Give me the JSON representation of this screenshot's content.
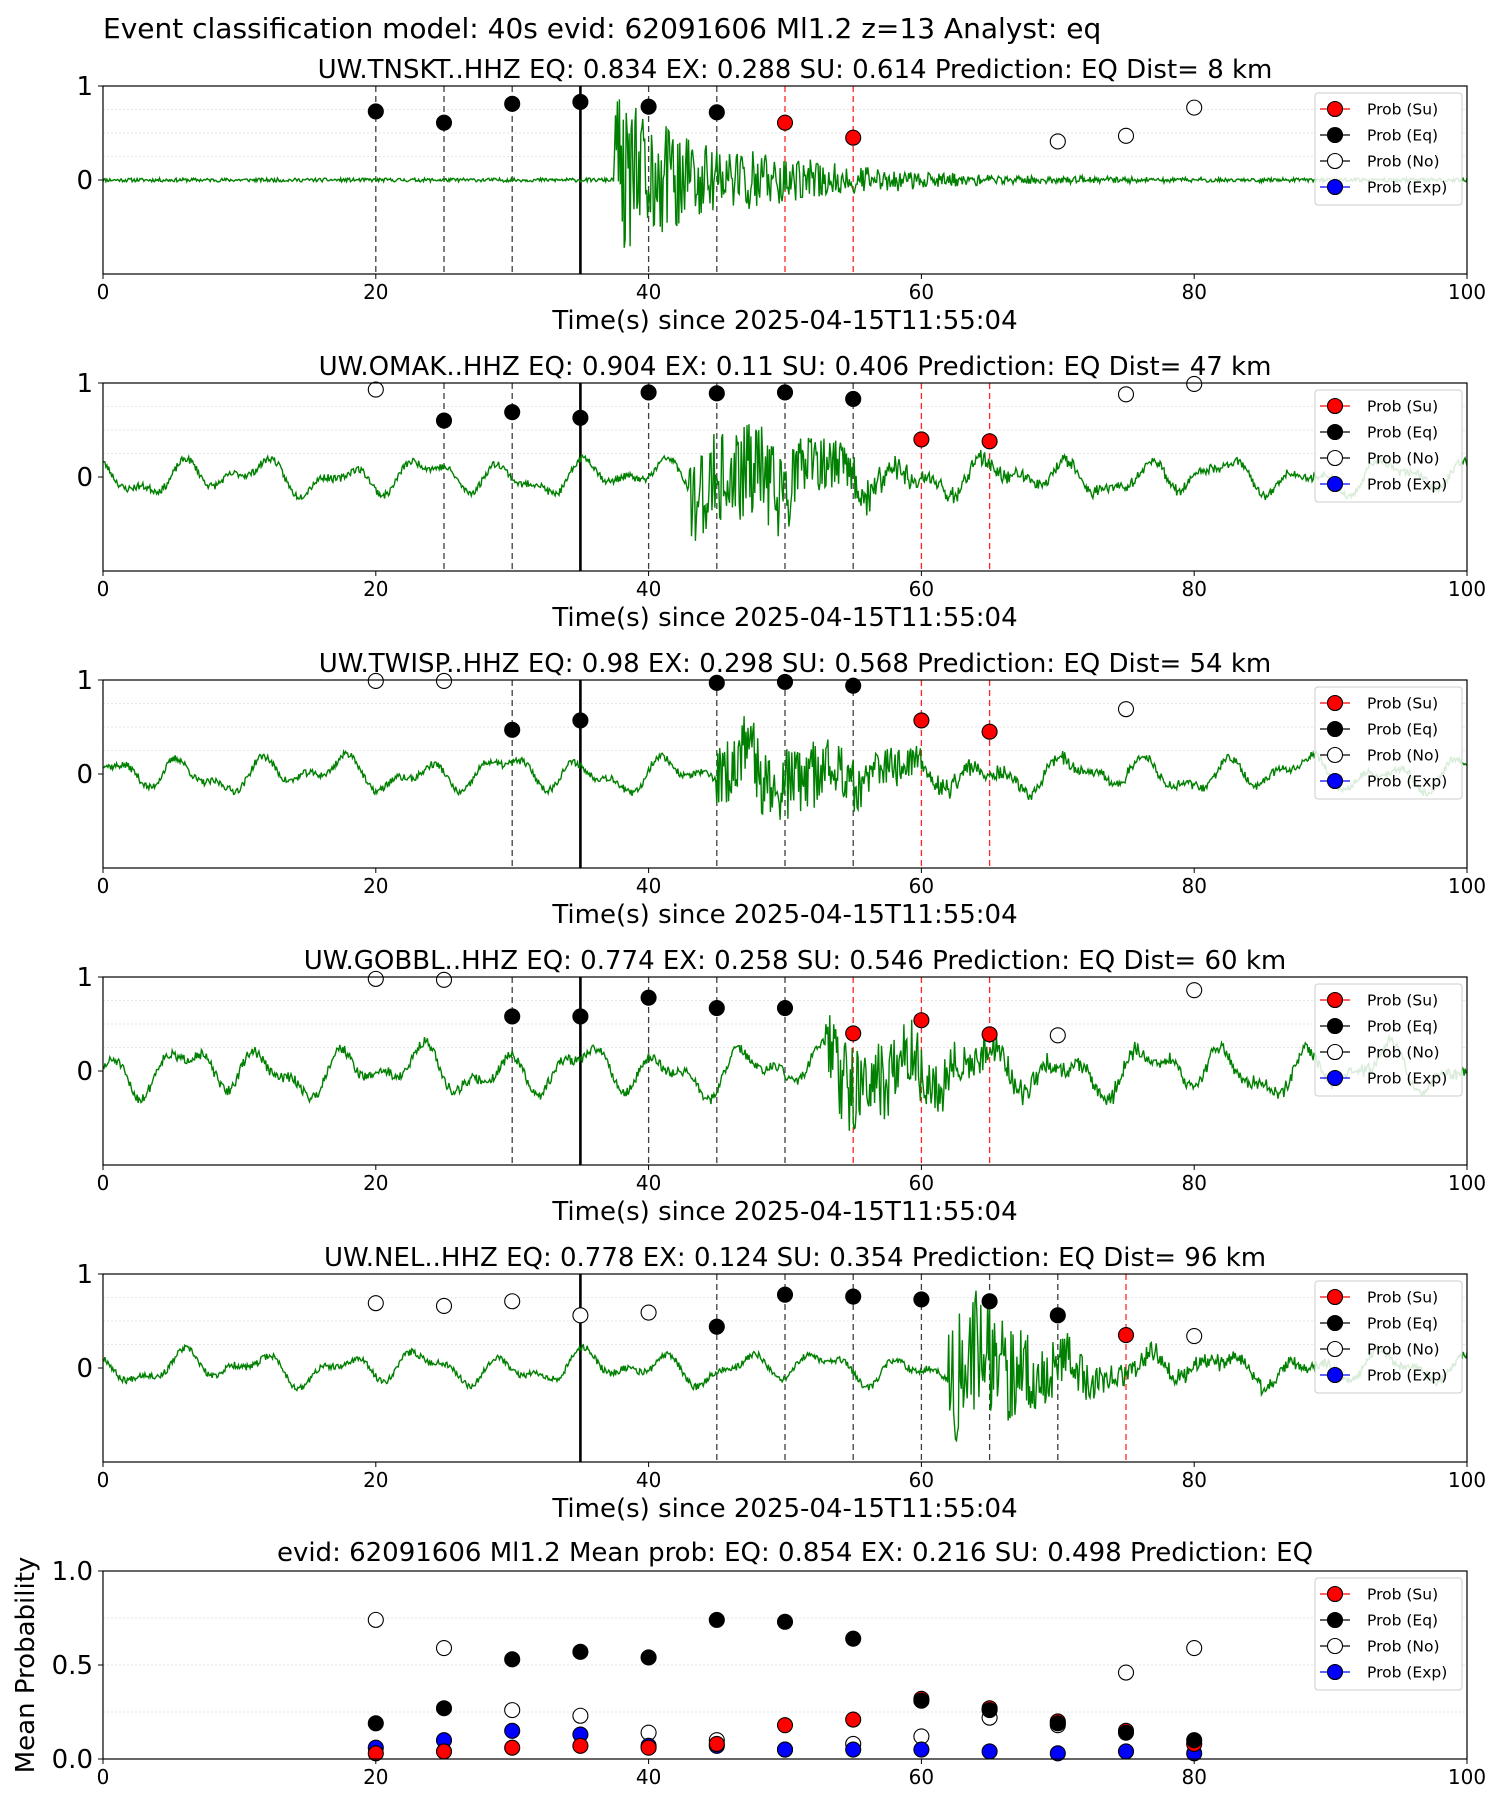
{
  "figure": {
    "suptitle": "Event classification model: 40s evid: 62091606 Ml1.2 z=13 Analyst: eq"
  },
  "legend": [
    "Prob (Su)",
    "Prob (Eq)",
    "Prob (No)",
    "Prob (Exp)"
  ],
  "colors": {
    "trace": "#008000",
    "su": "#ff0000",
    "eq": "#000000",
    "no": "#ffffff",
    "exp": "#0000ff",
    "grid": "#e6e6e6",
    "dashed_black": "#000000",
    "dashed_red": "#ff0000"
  },
  "chart_data": [
    {
      "type": "line",
      "title": "UW.TNSKT..HHZ   EQ: 0.834  EX: 0.288  SU: 0.614   Prediction: EQ    Dist= 8 km",
      "xlabel": "Time(s) since 2025-04-15T11:55:04",
      "ylabel": "",
      "xlim": [
        0,
        100
      ],
      "ylim": [
        -1,
        1
      ],
      "xticks": [
        "0",
        "20",
        "40",
        "60",
        "80",
        "100"
      ],
      "yticks": [
        "0",
        "1"
      ],
      "legend_position": "upper right",
      "waveform": {
        "onset": 37.5,
        "duration": 12,
        "amp": 0.9,
        "noise": 0.02,
        "peak": 0.55,
        "style": "local",
        "seed": 11
      },
      "solid_line": 35,
      "black_dashed": [
        20,
        25,
        30,
        40,
        45
      ],
      "red_dashed": [
        50,
        55
      ],
      "points": [
        {
          "x": 20,
          "y": 0.73,
          "cls": "eq"
        },
        {
          "x": 25,
          "y": 0.61,
          "cls": "eq"
        },
        {
          "x": 30,
          "y": 0.81,
          "cls": "eq"
        },
        {
          "x": 35,
          "y": 0.83,
          "cls": "eq"
        },
        {
          "x": 40,
          "y": 0.78,
          "cls": "eq"
        },
        {
          "x": 45,
          "y": 0.72,
          "cls": "eq"
        },
        {
          "x": 50,
          "y": 0.61,
          "cls": "su"
        },
        {
          "x": 55,
          "y": 0.45,
          "cls": "su"
        },
        {
          "x": 70,
          "y": 0.41,
          "cls": "no"
        },
        {
          "x": 75,
          "y": 0.47,
          "cls": "no"
        },
        {
          "x": 80,
          "y": 0.77,
          "cls": "no"
        }
      ]
    },
    {
      "type": "line",
      "title": "UW.OMAK..HHZ   EQ: 0.904  EX: 0.11  SU: 0.406   Prediction: EQ    Dist= 47 km",
      "xlabel": "Time(s) since 2025-04-15T11:55:04",
      "ylabel": "",
      "xlim": [
        0,
        100
      ],
      "ylim": [
        -1,
        1
      ],
      "xticks": [
        "0",
        "20",
        "40",
        "60",
        "80",
        "100"
      ],
      "yticks": [
        "0",
        "1"
      ],
      "legend_position": "upper right",
      "waveform": {
        "onset": 43,
        "duration": 12,
        "amp": 0.7,
        "noise": 0.22,
        "peak": 48.5,
        "style": "regional",
        "seed": 23
      },
      "solid_line": 35,
      "black_dashed": [
        25,
        30,
        40,
        45,
        50,
        55
      ],
      "red_dashed": [
        60,
        65
      ],
      "points": [
        {
          "x": 20,
          "y": 0.93,
          "cls": "no"
        },
        {
          "x": 25,
          "y": 0.6,
          "cls": "eq"
        },
        {
          "x": 30,
          "y": 0.69,
          "cls": "eq"
        },
        {
          "x": 35,
          "y": 0.63,
          "cls": "eq"
        },
        {
          "x": 40,
          "y": 0.9,
          "cls": "eq"
        },
        {
          "x": 45,
          "y": 0.89,
          "cls": "eq"
        },
        {
          "x": 50,
          "y": 0.9,
          "cls": "eq"
        },
        {
          "x": 55,
          "y": 0.83,
          "cls": "eq"
        },
        {
          "x": 60,
          "y": 0.4,
          "cls": "su"
        },
        {
          "x": 65,
          "y": 0.38,
          "cls": "su"
        },
        {
          "x": 75,
          "y": 0.88,
          "cls": "no"
        },
        {
          "x": 80,
          "y": 0.99,
          "cls": "no"
        }
      ]
    },
    {
      "type": "line",
      "title": "UW.TWISP..HHZ   EQ: 0.98  EX: 0.298  SU: 0.568   Prediction: EQ    Dist= 54 km",
      "xlabel": "Time(s) since 2025-04-15T11:55:04",
      "ylabel": "",
      "xlim": [
        0,
        100
      ],
      "ylim": [
        -1,
        1
      ],
      "xticks": [
        "0",
        "20",
        "40",
        "60",
        "80",
        "100"
      ],
      "yticks": [
        "0",
        "1"
      ],
      "legend_position": "upper right",
      "waveform": {
        "onset": 45,
        "duration": 12,
        "amp": 0.6,
        "noise": 0.22,
        "peak": 52,
        "style": "regional",
        "seed": 37
      },
      "solid_line": 35,
      "black_dashed": [
        30,
        45,
        50,
        55
      ],
      "red_dashed": [
        60,
        65
      ],
      "points": [
        {
          "x": 20,
          "y": 0.99,
          "cls": "no"
        },
        {
          "x": 25,
          "y": 0.99,
          "cls": "no"
        },
        {
          "x": 30,
          "y": 0.47,
          "cls": "eq"
        },
        {
          "x": 35,
          "y": 0.57,
          "cls": "eq"
        },
        {
          "x": 45,
          "y": 0.97,
          "cls": "eq"
        },
        {
          "x": 50,
          "y": 0.98,
          "cls": "eq"
        },
        {
          "x": 55,
          "y": 0.94,
          "cls": "eq"
        },
        {
          "x": 60,
          "y": 0.57,
          "cls": "su"
        },
        {
          "x": 65,
          "y": 0.45,
          "cls": "su"
        },
        {
          "x": 75,
          "y": 0.69,
          "cls": "no"
        }
      ]
    },
    {
      "type": "line",
      "title": "UW.GOBBL..HHZ   EQ: 0.774  EX: 0.258  SU: 0.546   Prediction: EQ    Dist= 60 km",
      "xlabel": "Time(s) since 2025-04-15T11:55:04",
      "ylabel": "",
      "xlim": [
        0,
        100
      ],
      "ylim": [
        -1,
        1
      ],
      "xticks": [
        "0",
        "20",
        "40",
        "60",
        "80",
        "100"
      ],
      "yticks": [
        "0",
        "1"
      ],
      "legend_position": "upper right",
      "waveform": {
        "onset": 53,
        "duration": 12,
        "amp": 0.6,
        "noise": 0.3,
        "peak": 57,
        "style": "regional",
        "seed": 51
      },
      "solid_line": 35,
      "black_dashed": [
        30,
        40,
        45,
        50
      ],
      "red_dashed": [
        55,
        60,
        65
      ],
      "points": [
        {
          "x": 20,
          "y": 0.98,
          "cls": "no"
        },
        {
          "x": 25,
          "y": 0.97,
          "cls": "no"
        },
        {
          "x": 30,
          "y": 0.58,
          "cls": "eq"
        },
        {
          "x": 35,
          "y": 0.58,
          "cls": "eq"
        },
        {
          "x": 40,
          "y": 0.78,
          "cls": "eq"
        },
        {
          "x": 45,
          "y": 0.67,
          "cls": "eq"
        },
        {
          "x": 50,
          "y": 0.67,
          "cls": "eq"
        },
        {
          "x": 55,
          "y": 0.4,
          "cls": "su"
        },
        {
          "x": 60,
          "y": 0.54,
          "cls": "su"
        },
        {
          "x": 65,
          "y": 0.39,
          "cls": "su"
        },
        {
          "x": 70,
          "y": 0.38,
          "cls": "no"
        },
        {
          "x": 80,
          "y": 0.86,
          "cls": "no"
        }
      ]
    },
    {
      "type": "line",
      "title": "UW.NEL..HHZ   EQ: 0.778  EX: 0.124  SU: 0.354   Prediction: EQ    Dist= 96 km",
      "xlabel": "Time(s) since 2025-04-15T11:55:04",
      "ylabel": "",
      "xlim": [
        0,
        100
      ],
      "ylim": [
        -1,
        1
      ],
      "xticks": [
        "0",
        "20",
        "40",
        "60",
        "80",
        "100"
      ],
      "yticks": [
        "0",
        "1"
      ],
      "legend_position": "upper right",
      "waveform": {
        "onset": 62,
        "duration": 10,
        "amp": 0.8,
        "noise": 0.2,
        "peak": 65,
        "style": "regional",
        "seed": 67
      },
      "solid_line": 35,
      "black_dashed": [
        45,
        50,
        55,
        60,
        65,
        70
      ],
      "red_dashed": [
        75
      ],
      "points": [
        {
          "x": 20,
          "y": 0.69,
          "cls": "no"
        },
        {
          "x": 25,
          "y": 0.66,
          "cls": "no"
        },
        {
          "x": 30,
          "y": 0.71,
          "cls": "no"
        },
        {
          "x": 35,
          "y": 0.56,
          "cls": "no"
        },
        {
          "x": 40,
          "y": 0.59,
          "cls": "no"
        },
        {
          "x": 45,
          "y": 0.44,
          "cls": "eq"
        },
        {
          "x": 50,
          "y": 0.78,
          "cls": "eq"
        },
        {
          "x": 55,
          "y": 0.76,
          "cls": "eq"
        },
        {
          "x": 60,
          "y": 0.73,
          "cls": "eq"
        },
        {
          "x": 65,
          "y": 0.71,
          "cls": "eq"
        },
        {
          "x": 70,
          "y": 0.56,
          "cls": "eq"
        },
        {
          "x": 75,
          "y": 0.35,
          "cls": "su"
        },
        {
          "x": 80,
          "y": 0.34,
          "cls": "no"
        }
      ]
    },
    {
      "type": "scatter",
      "title": "evid: 62091606  Ml1.2   Mean prob:   EQ: 0.854  EX: 0.216  SU: 0.498   Prediction: EQ",
      "xlabel": "",
      "ylabel": "Mean Probability",
      "xlim": [
        0,
        100
      ],
      "ylim": [
        0,
        1
      ],
      "xticks": [
        "0",
        "20",
        "40",
        "60",
        "80",
        "100"
      ],
      "yticks": [
        "0.0",
        "0.5",
        "1.0"
      ],
      "legend_position": "upper right",
      "series": [
        {
          "name": "Prob (No)",
          "cls": "no",
          "x": [
            20,
            25,
            30,
            35,
            40,
            45,
            50,
            55,
            60,
            65,
            70,
            75,
            80
          ],
          "values": [
            0.74,
            0.59,
            0.26,
            0.23,
            0.14,
            0.1,
            0.05,
            0.08,
            0.12,
            0.22,
            0.18,
            0.46,
            0.59
          ]
        },
        {
          "name": "Prob (Exp)",
          "cls": "exp",
          "x": [
            20,
            25,
            30,
            35,
            40,
            45,
            50,
            55,
            60,
            65,
            70,
            75,
            80
          ],
          "values": [
            0.06,
            0.1,
            0.15,
            0.13,
            0.07,
            0.07,
            0.05,
            0.05,
            0.05,
            0.04,
            0.03,
            0.04,
            0.03
          ]
        },
        {
          "name": "Prob (Su)",
          "cls": "su",
          "x": [
            20,
            25,
            30,
            35,
            40,
            45,
            50,
            55,
            60,
            65,
            70,
            75,
            80
          ],
          "values": [
            0.03,
            0.04,
            0.06,
            0.07,
            0.06,
            0.08,
            0.18,
            0.21,
            0.32,
            0.27,
            0.2,
            0.15,
            0.08
          ]
        },
        {
          "name": "Prob (Eq)",
          "cls": "eq",
          "x": [
            20,
            25,
            30,
            35,
            40,
            45,
            50,
            55,
            60,
            65,
            70,
            75,
            80
          ],
          "values": [
            0.19,
            0.27,
            0.53,
            0.57,
            0.54,
            0.74,
            0.73,
            0.64,
            0.31,
            0.26,
            0.19,
            0.14,
            0.1
          ]
        }
      ]
    }
  ]
}
